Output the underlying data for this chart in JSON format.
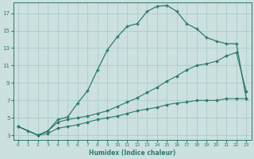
{
  "xlabel": "Humidex (Indice chaleur)",
  "bg_color": "#cce0e0",
  "grid_color": "#aacccc",
  "line_color": "#2a7a6a",
  "xlim": [
    -0.5,
    23.5
  ],
  "ylim": [
    2.5,
    18.2
  ],
  "xticks": [
    0,
    1,
    2,
    3,
    4,
    5,
    6,
    7,
    8,
    9,
    10,
    11,
    12,
    13,
    14,
    15,
    16,
    17,
    18,
    19,
    20,
    21,
    22,
    23
  ],
  "yticks": [
    3,
    5,
    7,
    9,
    11,
    13,
    15,
    17
  ],
  "line1_x": [
    0,
    1,
    2,
    3,
    4,
    5,
    6,
    7,
    8,
    9,
    10,
    11,
    12,
    13,
    14,
    15,
    16,
    17,
    18,
    19,
    20,
    21,
    22,
    23
  ],
  "line1_y": [
    4.0,
    3.5,
    3.0,
    3.5,
    4.8,
    5.1,
    6.7,
    8.1,
    10.5,
    12.8,
    14.3,
    15.5,
    15.8,
    17.2,
    17.8,
    17.9,
    17.2,
    15.8,
    15.2,
    14.2,
    13.8,
    13.5,
    13.5,
    7.2
  ],
  "line2_x": [
    0,
    2,
    3,
    4,
    5,
    6,
    7,
    8,
    9,
    10,
    11,
    12,
    13,
    14,
    15,
    16,
    17,
    18,
    19,
    20,
    21,
    22,
    23
  ],
  "line2_y": [
    4.0,
    3.0,
    3.5,
    4.5,
    4.8,
    5.0,
    5.2,
    5.5,
    5.8,
    6.3,
    6.8,
    7.3,
    7.9,
    8.5,
    9.2,
    9.8,
    10.5,
    11.0,
    11.2,
    11.5,
    12.1,
    12.5,
    8.0
  ],
  "line3_x": [
    0,
    2,
    3,
    4,
    5,
    6,
    7,
    8,
    9,
    10,
    11,
    12,
    13,
    14,
    15,
    16,
    17,
    18,
    19,
    20,
    21,
    22,
    23
  ],
  "line3_y": [
    4.0,
    3.0,
    3.2,
    3.8,
    4.0,
    4.2,
    4.5,
    4.8,
    5.0,
    5.2,
    5.5,
    5.8,
    6.0,
    6.2,
    6.5,
    6.7,
    6.8,
    7.0,
    7.0,
    7.0,
    7.2,
    7.2,
    7.2
  ]
}
